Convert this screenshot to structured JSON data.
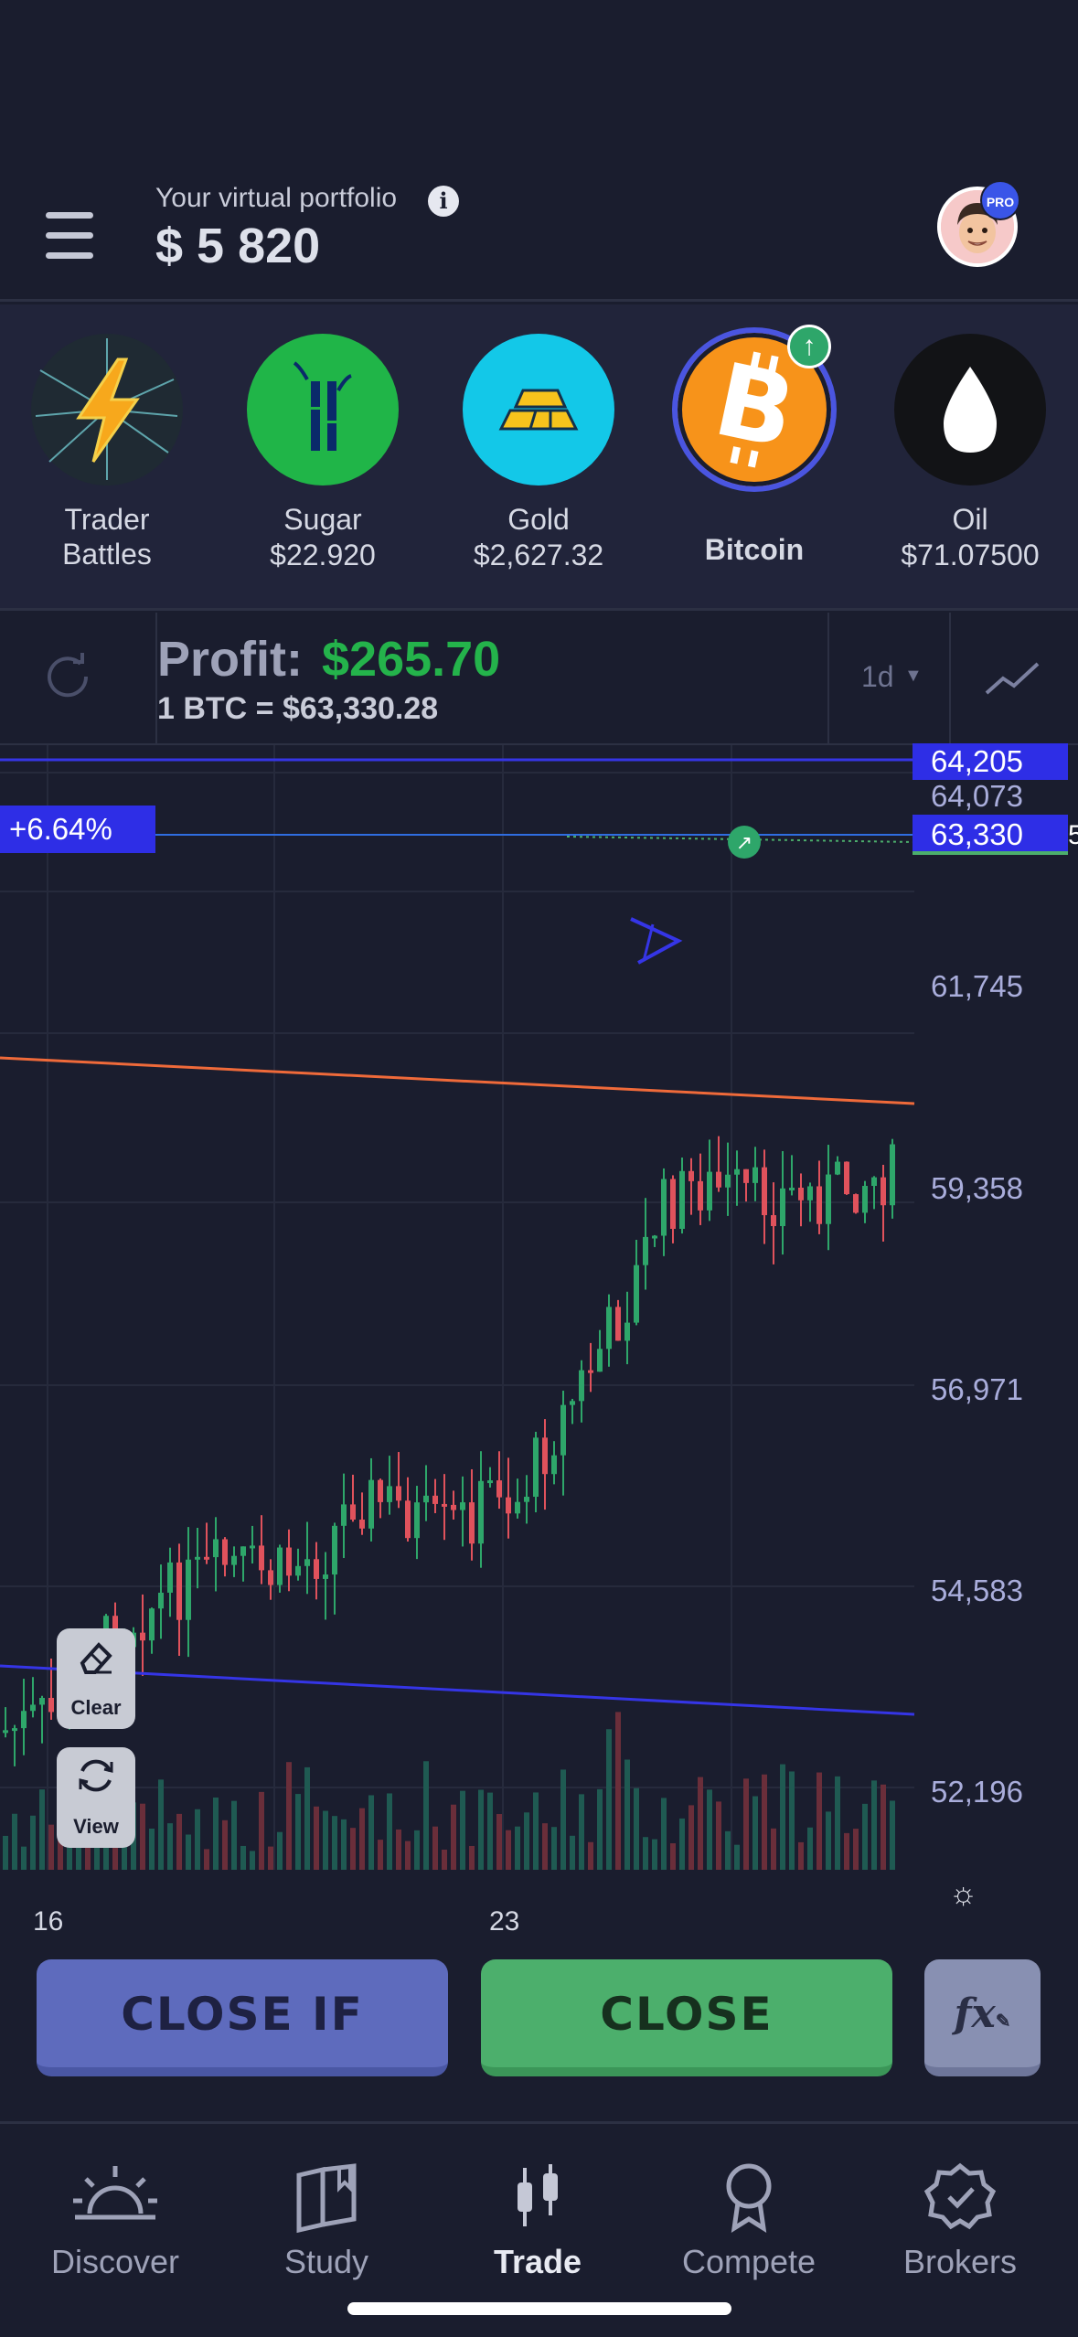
{
  "header": {
    "portfolio_label": "Your virtual portfolio",
    "portfolio_value": "$ 5 820",
    "badge": "PRO",
    "info": "i"
  },
  "assets": [
    {
      "name_line1": "Trader",
      "name_line2": "Battles",
      "icon": "lightning-icon",
      "color": "#1f2a33"
    },
    {
      "name": "Sugar",
      "price": "$22.920",
      "icon": "sugarcane-icon",
      "color": "#20b548"
    },
    {
      "name": "Gold",
      "price": "$2,627.32",
      "icon": "gold-bar-icon",
      "color": "#13c8e8"
    },
    {
      "name": "Bitcoin",
      "icon": "bitcoin-icon",
      "color": "#f7931a",
      "selected": true
    },
    {
      "name": "Oil",
      "price": "$71.07500",
      "icon": "oil-drop-icon",
      "color": "#121316"
    }
  ],
  "profit": {
    "label": "Profit:",
    "value": "$265.70",
    "rate": "1 BTC = $63,330.28",
    "timeframe": "1d"
  },
  "chart": {
    "y_labels": [
      "64,205",
      "64,073",
      "63,330",
      "61,745",
      "59,358",
      "56,971",
      "54,583",
      "52,196"
    ],
    "x_labels": [
      "16",
      "23"
    ],
    "pct_tag": "+6.64%",
    "overflow_digit": "5",
    "tools": {
      "clear": "Clear",
      "view": "View"
    },
    "colors": {
      "up": "#2ea66a",
      "down": "#e0525c",
      "blue_line": "#3535e6",
      "orange_line": "#ef6a3a",
      "price_line": "#2f6de0"
    }
  },
  "actions": {
    "close_if": "CLOSE IF",
    "close": "CLOSE",
    "fx": "fx"
  },
  "nav": [
    {
      "label": "Discover",
      "icon": "sunrise-icon"
    },
    {
      "label": "Study",
      "icon": "book-icon"
    },
    {
      "label": "Trade",
      "icon": "candles-icon",
      "active": true
    },
    {
      "label": "Compete",
      "icon": "medal-icon"
    },
    {
      "label": "Brokers",
      "icon": "badge-check-icon"
    }
  ]
}
